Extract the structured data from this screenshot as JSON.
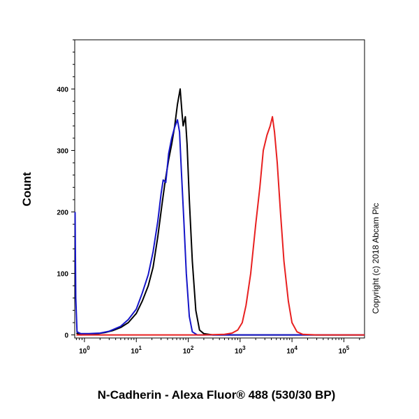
{
  "chart_data": {
    "type": "line",
    "title": "",
    "xlabel": "N-Cadherin - Alexa Fluor® 488 (530/30 BP)",
    "ylabel": "Count",
    "x_scale": "log",
    "xlim": [
      0.65,
      250000
    ],
    "ylim": [
      -5,
      480
    ],
    "x_ticks": [
      {
        "value": 1,
        "base": "10",
        "exp": "0"
      },
      {
        "value": 10,
        "base": "10",
        "exp": "1"
      },
      {
        "value": 100,
        "base": "10",
        "exp": "2"
      },
      {
        "value": 1000,
        "base": "10",
        "exp": "3"
      },
      {
        "value": 10000,
        "base": "10",
        "exp": "4"
      },
      {
        "value": 100000,
        "base": "10",
        "exp": "5"
      }
    ],
    "y_ticks": [
      0,
      100,
      200,
      300,
      400
    ],
    "grid": false,
    "legend": "none",
    "annotation": "Copyright (c) 2018 Abcam Plc",
    "series": [
      {
        "color": "#000000",
        "points": [
          [
            0.7,
            3
          ],
          [
            0.85,
            0
          ],
          [
            1.2,
            1
          ],
          [
            1.8,
            2
          ],
          [
            2.5,
            4
          ],
          [
            3.5,
            7
          ],
          [
            5,
            12
          ],
          [
            7,
            20
          ],
          [
            10,
            35
          ],
          [
            13,
            55
          ],
          [
            17,
            80
          ],
          [
            21,
            110
          ],
          [
            26,
            160
          ],
          [
            31,
            210
          ],
          [
            36,
            250
          ],
          [
            42,
            285
          ],
          [
            48,
            310
          ],
          [
            55,
            340
          ],
          [
            62,
            375
          ],
          [
            70,
            400
          ],
          [
            76,
            360
          ],
          [
            80,
            340
          ],
          [
            88,
            355
          ],
          [
            95,
            310
          ],
          [
            105,
            220
          ],
          [
            120,
            120
          ],
          [
            140,
            40
          ],
          [
            165,
            8
          ],
          [
            200,
            2
          ],
          [
            300,
            0
          ],
          [
            2000,
            0
          ],
          [
            100000,
            0
          ],
          [
            250000,
            0
          ]
        ]
      },
      {
        "color": "#1515c8",
        "points": [
          [
            0.66,
            200
          ],
          [
            0.68,
            60
          ],
          [
            0.72,
            5
          ],
          [
            0.85,
            2
          ],
          [
            1.2,
            2
          ],
          [
            2,
            3
          ],
          [
            3,
            6
          ],
          [
            5,
            14
          ],
          [
            7,
            25
          ],
          [
            10,
            42
          ],
          [
            13,
            68
          ],
          [
            17,
            98
          ],
          [
            21,
            135
          ],
          [
            26,
            185
          ],
          [
            30,
            230
          ],
          [
            33,
            252
          ],
          [
            37,
            248
          ],
          [
            42,
            295
          ],
          [
            48,
            320
          ],
          [
            55,
            338
          ],
          [
            62,
            350
          ],
          [
            68,
            330
          ],
          [
            74,
            265
          ],
          [
            82,
            190
          ],
          [
            92,
            100
          ],
          [
            105,
            30
          ],
          [
            120,
            5
          ],
          [
            150,
            0
          ],
          [
            400,
            0
          ],
          [
            100000,
            0
          ],
          [
            250000,
            0
          ]
        ]
      },
      {
        "color": "#e82020",
        "points": [
          [
            0.7,
            0
          ],
          [
            200,
            0
          ],
          [
            500,
            1
          ],
          [
            700,
            3
          ],
          [
            900,
            8
          ],
          [
            1100,
            20
          ],
          [
            1300,
            48
          ],
          [
            1600,
            100
          ],
          [
            2000,
            180
          ],
          [
            2400,
            240
          ],
          [
            2800,
            300
          ],
          [
            3300,
            325
          ],
          [
            3800,
            340
          ],
          [
            4200,
            355
          ],
          [
            4600,
            330
          ],
          [
            5200,
            280
          ],
          [
            6000,
            200
          ],
          [
            7000,
            120
          ],
          [
            8500,
            55
          ],
          [
            10000,
            20
          ],
          [
            12500,
            5
          ],
          [
            16000,
            1
          ],
          [
            30000,
            0
          ],
          [
            250000,
            0
          ]
        ]
      }
    ]
  }
}
